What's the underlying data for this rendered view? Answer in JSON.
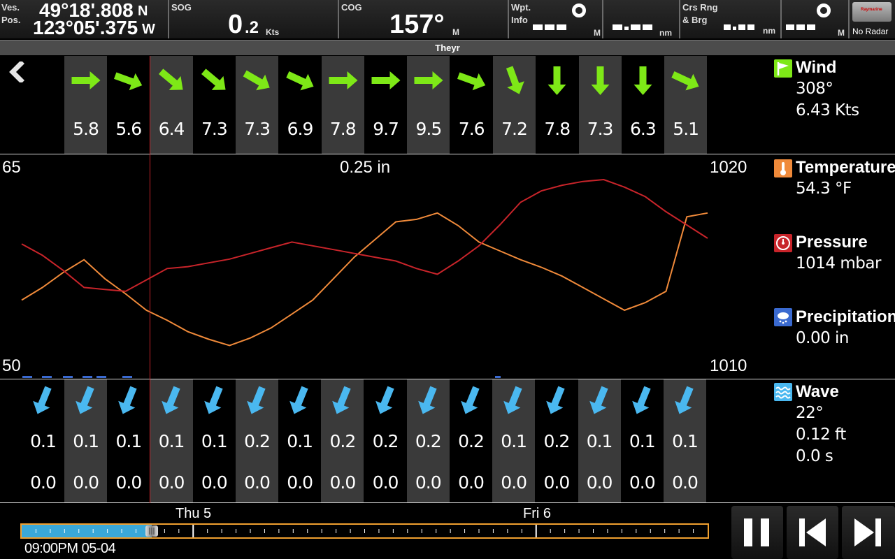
{
  "top": {
    "ves_label": "Ves.",
    "pos_label": "Pos.",
    "lat": "49°18'.808",
    "lat_hemi": "N",
    "lon": "123°05'.375",
    "lon_hemi": "W",
    "sog_label": "SOG",
    "sog_int": "0",
    "sog_dec": ".2",
    "sog_unit": "Kts",
    "cog_label": "COG",
    "cog_value": "157°",
    "cog_unit": "M",
    "wpt_label1": "Wpt.",
    "wpt_label2": "Info",
    "wpt_unit1": "M",
    "wpt_unit2": "nm",
    "crs_label1": "Crs Rng",
    "crs_label2": "& Brg",
    "crs_unit1": "nm",
    "crs_unit2": "M",
    "radar_label": "No Radar",
    "radar_brand": "Raymarine"
  },
  "title": "Theyr",
  "back_icon": "back-chevron-icon",
  "wind_row": {
    "arrow_color": "#7ee817",
    "cols": [
      {
        "angle": 0,
        "speed": "5.8"
      },
      {
        "angle": 20,
        "speed": "5.6"
      },
      {
        "angle": 40,
        "speed": "6.4"
      },
      {
        "angle": 40,
        "speed": "7.3"
      },
      {
        "angle": 30,
        "speed": "7.3"
      },
      {
        "angle": 25,
        "speed": "6.9"
      },
      {
        "angle": 0,
        "speed": "7.8"
      },
      {
        "angle": 0,
        "speed": "9.7"
      },
      {
        "angle": 0,
        "speed": "9.5"
      },
      {
        "angle": 20,
        "speed": "7.6"
      },
      {
        "angle": 70,
        "speed": "7.2"
      },
      {
        "angle": 90,
        "speed": "7.8"
      },
      {
        "angle": 90,
        "speed": "7.3"
      },
      {
        "angle": 90,
        "speed": "6.3"
      },
      {
        "angle": 25,
        "speed": "5.1"
      }
    ]
  },
  "graph": {
    "temp_max": "65",
    "temp_min": "50",
    "precip_label": "0.25 in",
    "press_max": "1020",
    "press_min": "1010",
    "temp_color": "#f08a3a",
    "press_color": "#c8242a",
    "precip_color": "#6aa8f0"
  },
  "chart_data": {
    "type": "line",
    "series": [
      {
        "name": "Temperature",
        "x": [
          0,
          1,
          2,
          3,
          4,
          5,
          6,
          7,
          8,
          9,
          10,
          11,
          12,
          13,
          14,
          15,
          16,
          17,
          18,
          19,
          20,
          21,
          22,
          23,
          24,
          25,
          26,
          27,
          28,
          29,
          30,
          31,
          32,
          33
        ],
        "values": [
          54.4,
          55.4,
          56.6,
          57.6,
          56.1,
          54.9,
          53.6,
          52.8,
          51.9,
          51.3,
          50.8,
          51.4,
          52.2,
          53.3,
          54.4,
          56.1,
          57.8,
          59.2,
          60.6,
          60.8,
          61.3,
          60.3,
          59.0,
          58.3,
          57.6,
          57.0,
          56.3,
          55.4,
          54.5,
          53.6,
          54.2,
          55.1,
          61.0,
          61.3
        ],
        "ylim": [
          50,
          65
        ]
      },
      {
        "name": "Pressure",
        "x": [
          0,
          1,
          2,
          3,
          4,
          5,
          6,
          7,
          8,
          9,
          10,
          11,
          12,
          13,
          14,
          15,
          16,
          17,
          18,
          19,
          20,
          21,
          22,
          23,
          24,
          25,
          26,
          27,
          28,
          29,
          30,
          31,
          32,
          33
        ],
        "values": [
          1015.9,
          1015.3,
          1014.5,
          1013.6,
          1013.5,
          1013.4,
          1014.0,
          1014.6,
          1014.7,
          1014.9,
          1015.1,
          1015.4,
          1015.7,
          1016.0,
          1015.8,
          1015.6,
          1015.4,
          1015.2,
          1015.0,
          1014.6,
          1014.3,
          1015.0,
          1015.8,
          1016.9,
          1018.1,
          1018.7,
          1019.0,
          1019.2,
          1019.3,
          1018.9,
          1018.4,
          1017.6,
          1016.9,
          1016.2
        ],
        "ylim": [
          1010,
          1020
        ]
      }
    ],
    "xlabel": "",
    "ylabel": ""
  },
  "legend": {
    "wind_title": "Wind",
    "wind_dir": "308°",
    "wind_speed": "6.43 Kts",
    "temp_title": "Temperature",
    "temp_val": "54.3 °F",
    "press_title": "Pressure",
    "press_val": "1014 mbar",
    "precip_title": "Precipitation",
    "precip_val": "0.00 in",
    "wave_title": "Wave",
    "wave_dir": "22°",
    "wave_height": "0.12 ft",
    "wave_period": "0.0 s"
  },
  "wave_row": {
    "arrow_color": "#4ab8f0",
    "cols": [
      {
        "h": "0.1",
        "p": "0.0"
      },
      {
        "h": "0.1",
        "p": "0.0"
      },
      {
        "h": "0.1",
        "p": "0.0"
      },
      {
        "h": "0.1",
        "p": "0.0"
      },
      {
        "h": "0.1",
        "p": "0.0"
      },
      {
        "h": "0.2",
        "p": "0.0"
      },
      {
        "h": "0.1",
        "p": "0.0"
      },
      {
        "h": "0.2",
        "p": "0.0"
      },
      {
        "h": "0.2",
        "p": "0.0"
      },
      {
        "h": "0.2",
        "p": "0.0"
      },
      {
        "h": "0.2",
        "p": "0.0"
      },
      {
        "h": "0.1",
        "p": "0.0"
      },
      {
        "h": "0.2",
        "p": "0.0"
      },
      {
        "h": "0.1",
        "p": "0.0"
      },
      {
        "h": "0.1",
        "p": "0.0"
      },
      {
        "h": "0.1",
        "p": "0.0"
      }
    ]
  },
  "timeline": {
    "day1": "Thu 5",
    "day2": "Fri 6",
    "current_time": "09:00PM 05-04",
    "progress": 0.19
  },
  "controls": {
    "pause_icon": "pause-icon",
    "prev_icon": "skip-back-icon",
    "next_icon": "skip-forward-icon"
  }
}
